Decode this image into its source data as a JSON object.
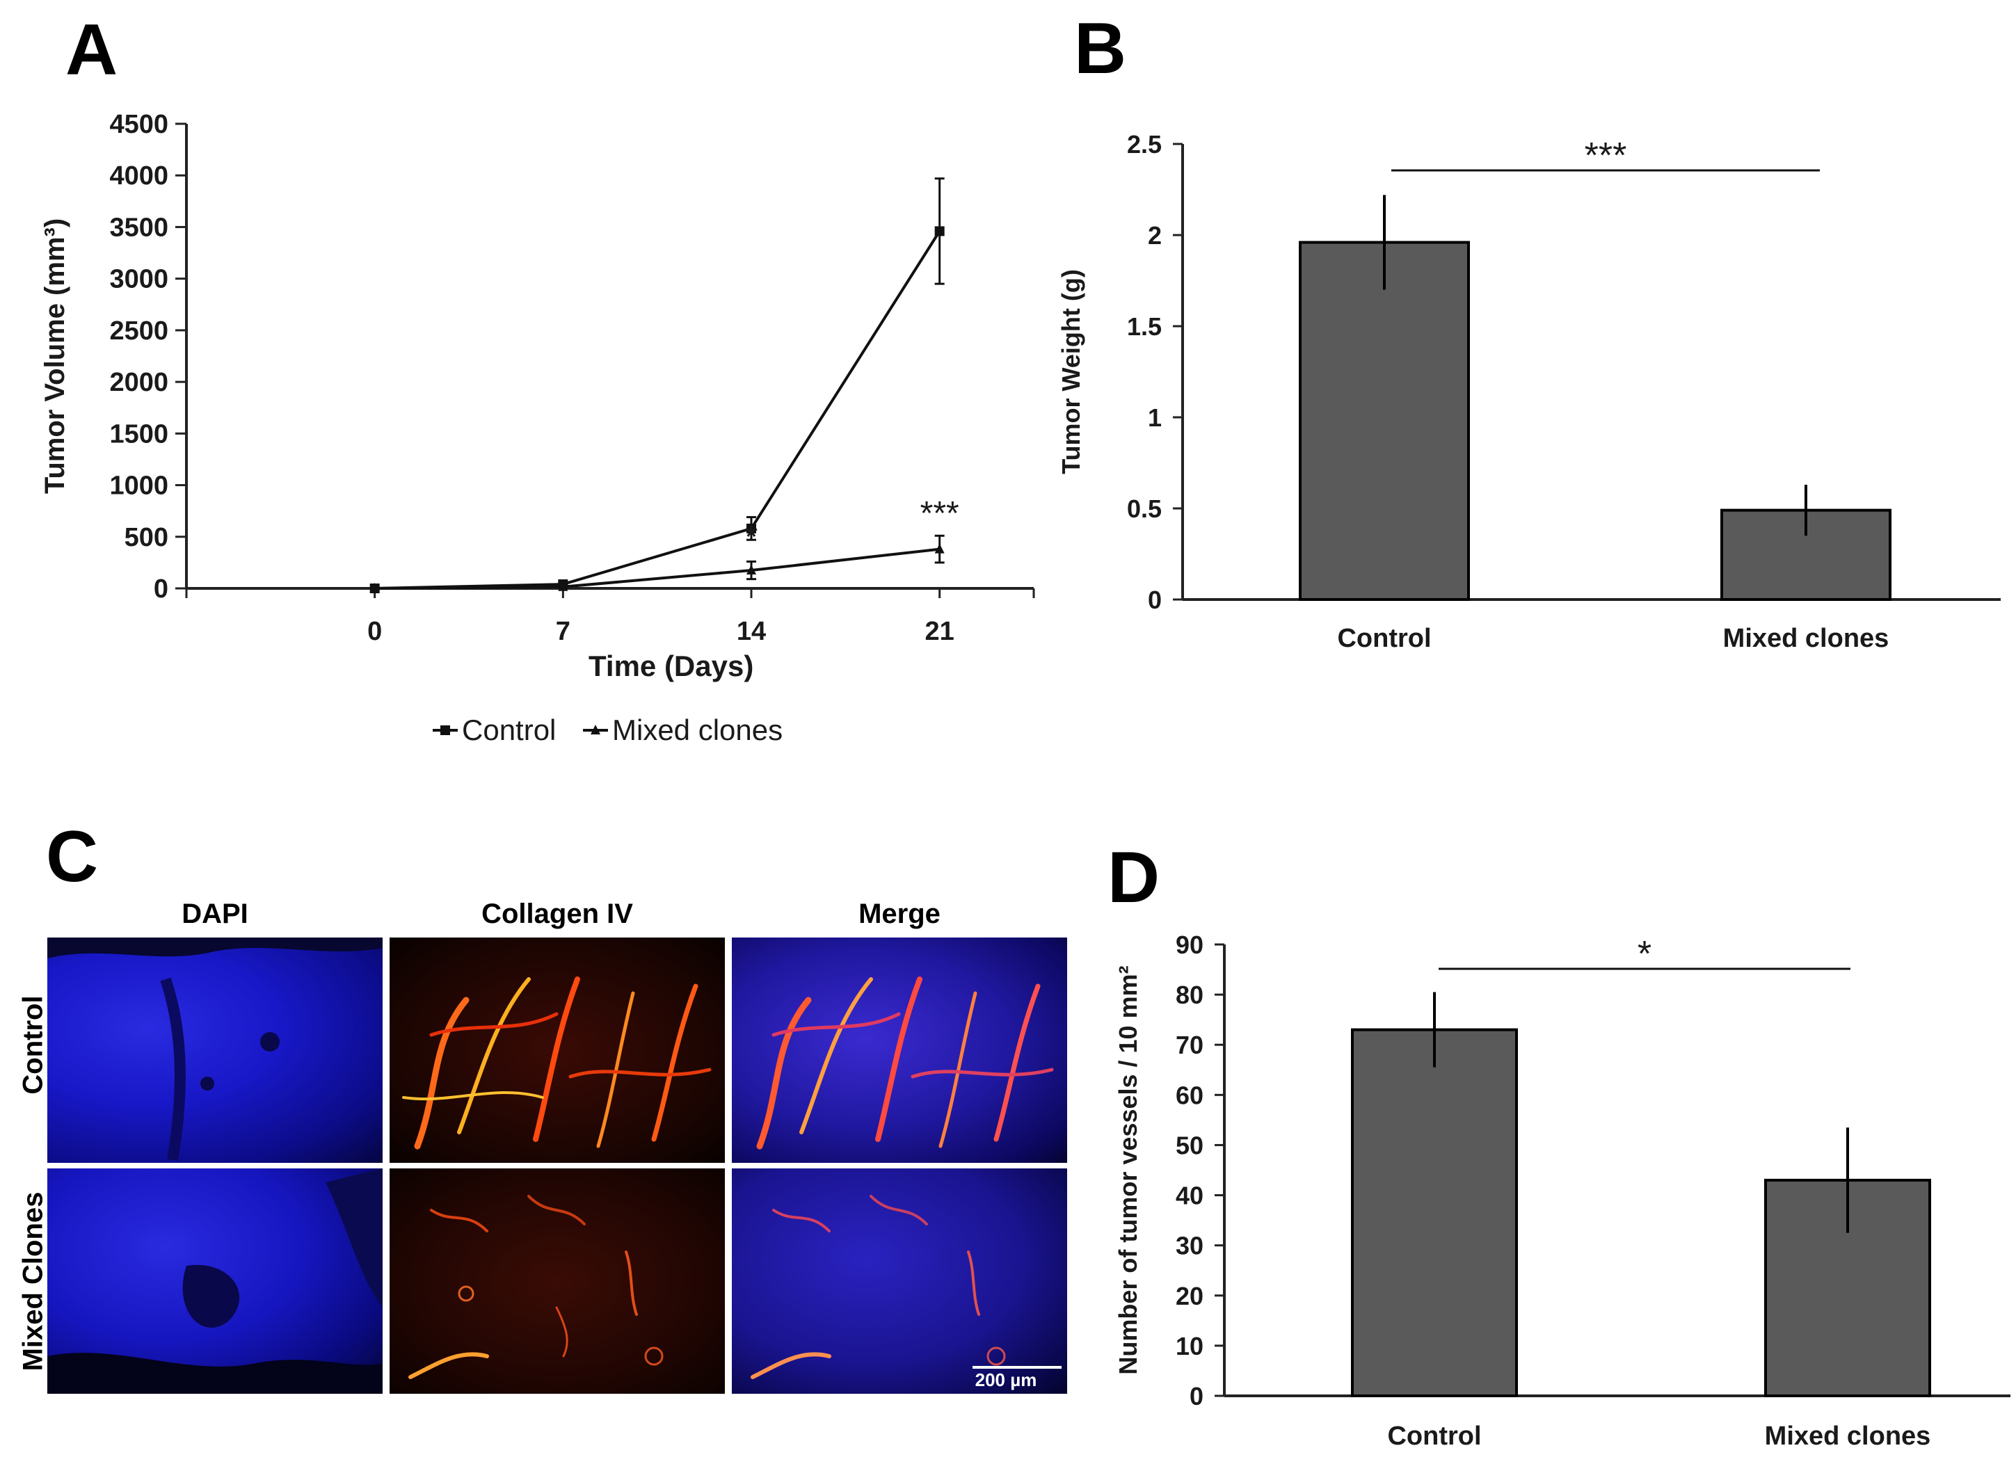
{
  "panels": {
    "a": {
      "letter": "A"
    },
    "b": {
      "letter": "B"
    },
    "c": {
      "letter": "C"
    },
    "d": {
      "letter": "D"
    }
  },
  "chart_data": [
    {
      "id": "A",
      "type": "line",
      "x": [
        0,
        7,
        14,
        21
      ],
      "xlabel": "Time (Days)",
      "ylabel": "Tumor Volume (mm³)",
      "ylim": [
        0,
        4500
      ],
      "yticks": [
        0,
        500,
        1000,
        1500,
        2000,
        2500,
        3000,
        3500,
        4000,
        4500
      ],
      "xlim": [
        -7,
        24.5
      ],
      "series": [
        {
          "name": "Control",
          "marker": "square",
          "values": [
            0,
            40,
            580,
            3460
          ],
          "errors": [
            0,
            10,
            110,
            510
          ]
        },
        {
          "name": "Mixed clones",
          "marker": "triangle",
          "values": [
            0,
            15,
            175,
            380
          ],
          "errors": [
            0,
            5,
            85,
            130
          ]
        }
      ],
      "annotations": [
        {
          "text": "*",
          "x": 14,
          "y": 390
        },
        {
          "text": "***",
          "x": 21,
          "y": 620
        }
      ],
      "legend_position": "bottom",
      "grid": false
    },
    {
      "id": "B",
      "type": "bar",
      "categories": [
        "Control",
        "Mixed clones"
      ],
      "values": [
        1.96,
        0.49
      ],
      "errors": [
        0.26,
        0.14
      ],
      "ylabel": "Tumor Weight (g)",
      "ylim": [
        0,
        2.5
      ],
      "yticks": [
        "0",
        "0.5",
        "1",
        "1.5",
        "2",
        "2.5"
      ],
      "significance": "***",
      "bar_color": "#5a5a5a",
      "grid": false
    },
    {
      "id": "D",
      "type": "bar",
      "categories": [
        "Control",
        "Mixed clones"
      ],
      "values": [
        73,
        43
      ],
      "errors": [
        7.5,
        10.5
      ],
      "ylabel": "Number of tumor vessels / 10 mm²",
      "ylim": [
        0,
        90
      ],
      "yticks": [
        "0",
        "10",
        "20",
        "30",
        "40",
        "50",
        "60",
        "70",
        "80",
        "90"
      ],
      "significance": "*",
      "bar_color": "#5a5a5a",
      "grid": false
    }
  ],
  "micrographs": {
    "columns": [
      "DAPI",
      "Collagen IV",
      "Merge"
    ],
    "rows": [
      "Control",
      "Mixed Clones"
    ],
    "scale_bar": "200 µm"
  }
}
